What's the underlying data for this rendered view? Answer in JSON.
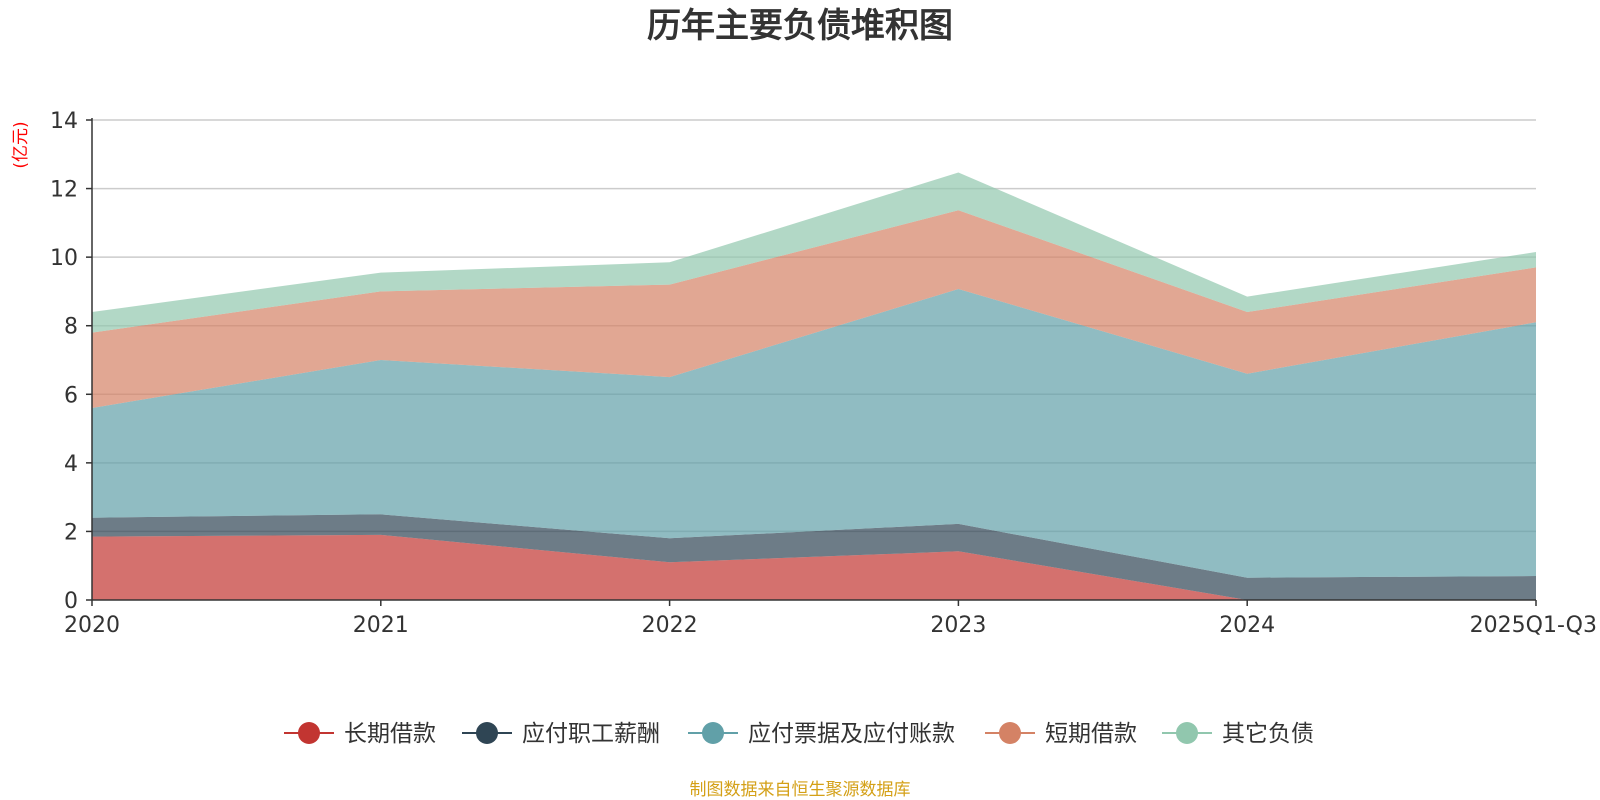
{
  "chart_data": {
    "type": "area",
    "stacked": true,
    "title": "历年主要负债堆积图",
    "unit_label": "(亿元)",
    "x": [
      "2020",
      "2021",
      "2022",
      "2023",
      "2024",
      "2025Q1-Q3"
    ],
    "ylim": [
      0,
      14
    ],
    "yticks": [
      0,
      2,
      4,
      6,
      8,
      10,
      12,
      14
    ],
    "grid": true,
    "legend_position": "bottom",
    "series": [
      {
        "name": "长期借款",
        "color": "#c23531",
        "values": [
          1.85,
          1.9,
          1.1,
          1.42,
          0.0,
          0.0
        ]
      },
      {
        "name": "应付职工薪酬",
        "color": "#2f4554",
        "values": [
          0.55,
          0.6,
          0.7,
          0.8,
          0.65,
          0.7
        ]
      },
      {
        "name": "应付票据及应付账款",
        "color": "#61a0a8",
        "values": [
          3.2,
          4.5,
          4.7,
          6.85,
          5.95,
          7.4
        ]
      },
      {
        "name": "短期借款",
        "color": "#d48265",
        "values": [
          2.2,
          2.0,
          2.7,
          2.3,
          1.8,
          1.6
        ]
      },
      {
        "name": "其它负债",
        "color": "#91c7ae",
        "values": [
          0.6,
          0.55,
          0.65,
          1.1,
          0.45,
          0.45
        ]
      }
    ],
    "unit_color": "#ff0000",
    "footer_color": "#d4a017"
  },
  "footer_text": "制图数据来自恒生聚源数据库"
}
